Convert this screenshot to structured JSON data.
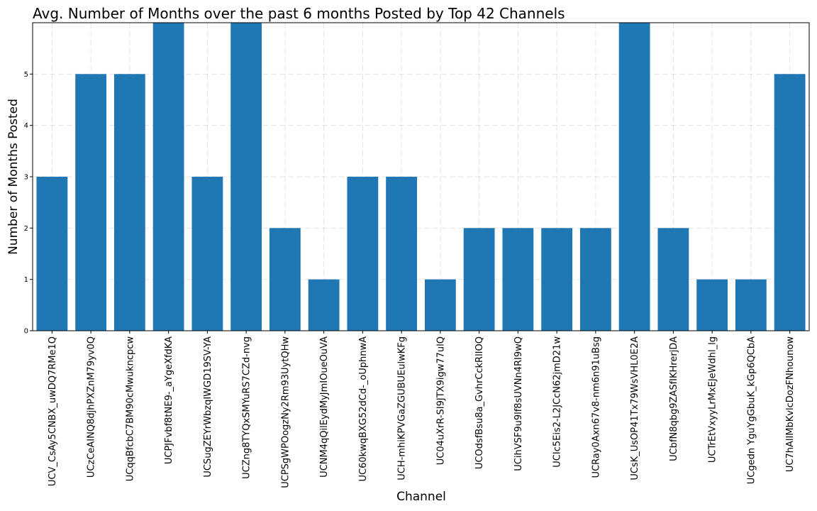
{
  "chart_data": {
    "type": "bar",
    "title": "Avg. Number of Months over the past 6 months Posted by Top 42 Channels",
    "xlabel": "Channel",
    "ylabel": "Number of Months Posted",
    "ylim": [
      0,
      6
    ],
    "yticks": [
      0,
      1,
      2,
      3,
      4,
      5
    ],
    "grid": true,
    "bar_color": "#1f77b4",
    "categories": [
      "UCV_CsAy5CNBX_uwDQ7RMe1Q",
      "UCzCeAINQ8djhPXZnM79yv0Q",
      "UCqqBfcbC7BM90cMwukncpcw",
      "UCPJFvbf8tNE9-_aYgeXfdKA",
      "UCSugZEYrWbzqIWGD19SV-YA",
      "UCZng8TYQxSMYuRS7CZd-nvg",
      "UCPSgWPOogzNy2Rm93UytQHw",
      "UCNM4qQilEydMyJmIOueOuVA",
      "UC60kwqBXG52dCd-_oUphnwA",
      "UCH-mhiKPVGaZGUBUEulwKFg",
      "UC04uXrR-SI9JTX9igw77ulQ",
      "UCOdsfBsu8a_GvhrCckRlIOQ",
      "UCihVSF9u9lf8sUVNn4RI9wQ",
      "UCIc5Eis2-L2JCcN62jmD21w",
      "UCRay0Axn67v8-nm6n91uBsg",
      "UCsK_UsOP41Tx79WsVHL0E2A",
      "UCbfN8qbg9ZASfIKHrerjDA",
      "UCTrEtVxyyLrMxEJeWdhl_lg",
      "UCgedn YguYgGbuK_kGp6QCbA",
      "UC7hAlIMbKvlcDozFNhounow"
    ],
    "values": [
      3,
      5,
      5,
      6,
      3,
      6,
      2,
      1,
      3,
      3,
      1,
      2,
      2,
      2,
      2,
      6,
      2,
      1,
      1,
      5
    ]
  }
}
